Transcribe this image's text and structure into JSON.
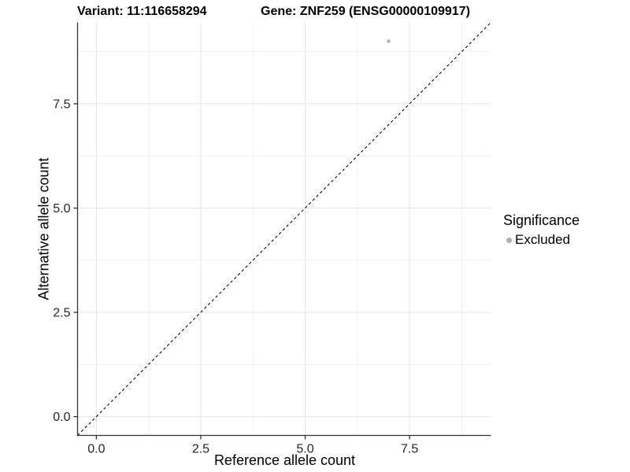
{
  "chart_data": {
    "type": "scatter",
    "title_left": "Variant: 11:116658294",
    "title_right": "Gene: ZNF259 (ENSG00000109917)",
    "xlabel": "Reference allele count",
    "ylabel": "Alternative allele count",
    "xlim": [
      -0.45,
      9.45
    ],
    "ylim": [
      -0.45,
      9.45
    ],
    "x_ticks": [
      {
        "v": 0.0,
        "label": "0.0"
      },
      {
        "v": 2.5,
        "label": "2.5"
      },
      {
        "v": 5.0,
        "label": "5.0"
      },
      {
        "v": 7.5,
        "label": "7.5"
      }
    ],
    "y_ticks": [
      {
        "v": 0.0,
        "label": "0.0"
      },
      {
        "v": 2.5,
        "label": "2.5"
      },
      {
        "v": 5.0,
        "label": "5.0"
      },
      {
        "v": 7.5,
        "label": "7.5"
      }
    ],
    "x_minor_gridlines": [
      1.25,
      3.75,
      6.25,
      8.75
    ],
    "y_minor_gridlines": [
      1.25,
      3.75,
      6.25,
      8.75
    ],
    "grid": "on",
    "series": [
      {
        "name": "Excluded",
        "color": "#b0b0b0",
        "points": [
          [
            7,
            9
          ]
        ]
      }
    ],
    "identity_line": {
      "equation": "y = x",
      "style": "dashed",
      "color": "#1a1a1a"
    },
    "legend": {
      "title": "Significance",
      "position": "right",
      "items": [
        {
          "label": "Excluded",
          "color": "#b0b0b0"
        }
      ]
    },
    "style": {
      "axis_color": "#333333",
      "tick_label_color": "#262626",
      "grid_major_color": "#e4e4e4",
      "grid_minor_color": "#f1f1f1",
      "background": "#ffffff"
    }
  }
}
